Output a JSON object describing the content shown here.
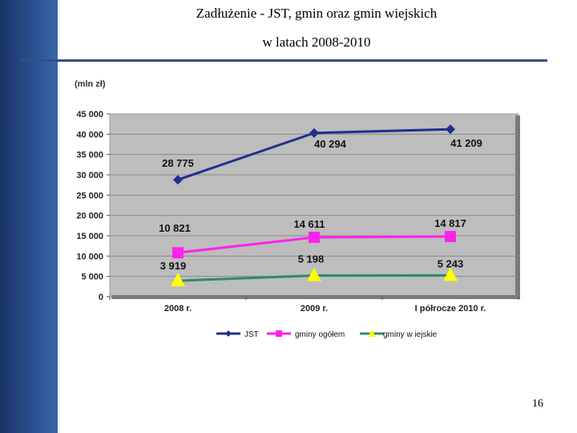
{
  "slide": {
    "title_line1": "Zadłużenie - JST, gmin oraz gmin wiejskich",
    "title_line2": "w latach 2008-2010",
    "page_number": "16"
  },
  "chart_data": {
    "type": "line",
    "title": "",
    "unit_label": "(mln zł)",
    "xlabel": "",
    "ylabel": "",
    "categories": [
      "2008 r.",
      "2009 r.",
      "I półrocze 2010 r."
    ],
    "ylim": [
      0,
      45000
    ],
    "yticks": [
      "45 000",
      "40 000",
      "35 000",
      "30 000",
      "25 000",
      "20 000",
      "15 000",
      "10 000",
      "5 000",
      "0"
    ],
    "grid": true,
    "legend_position": "bottom",
    "series": [
      {
        "name": "JST",
        "values": [
          28775,
          40294,
          41209
        ],
        "labels": [
          "28 775",
          "40 294",
          "41 209"
        ],
        "color": "#1f2f8f",
        "marker": "diamond"
      },
      {
        "name": "gminy ogółem",
        "values": [
          10821,
          14611,
          14817
        ],
        "labels": [
          "10 821",
          "14 611",
          "14 817"
        ],
        "color": "#ff22ee",
        "marker": "square"
      },
      {
        "name": "gminy w iejskie",
        "values": [
          3919,
          5198,
          5243
        ],
        "labels": [
          "3 919",
          "5 198",
          "5 243"
        ],
        "color": "#2e8b6a",
        "marker": "triangle",
        "marker_color": "#ffff00"
      }
    ]
  }
}
